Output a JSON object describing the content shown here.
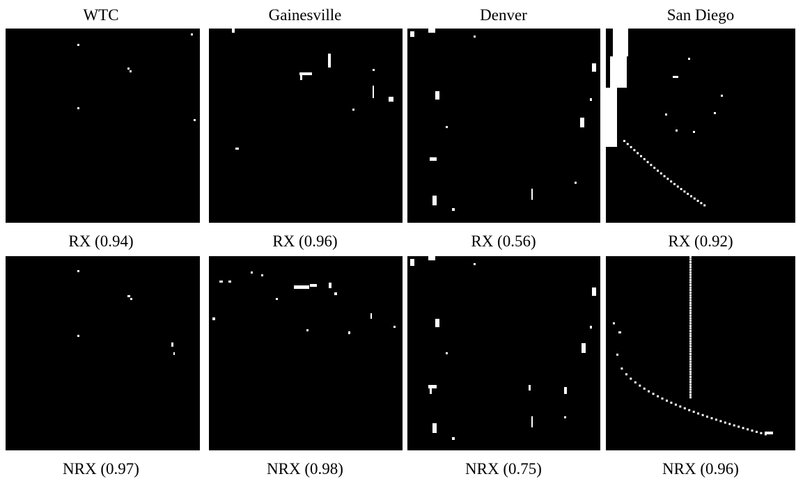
{
  "column_titles": [
    "WTC",
    "Gainesville",
    "Denver",
    "San Diego"
  ],
  "rows": [
    {
      "captions": [
        "RX (0.94)",
        "RX (0.96)",
        "RX (0.56)",
        "RX (0.92)"
      ]
    },
    {
      "captions": [
        "NRX (0.97)",
        "NRX (0.98)",
        "NRX (0.75)",
        "NRX (0.96)"
      ]
    }
  ]
}
